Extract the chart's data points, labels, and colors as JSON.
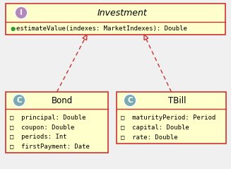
{
  "fig_w": 3.27,
  "fig_h": 2.39,
  "dpi": 100,
  "bg_color": "#f0f0f0",
  "box_fill": "#ffffcc",
  "border_color": "#cc3333",
  "iface_circle_color": "#b388b8",
  "class_circle_color": "#7aabb0",
  "arrow_color": "#cc3333",
  "method_dot_color": "#339933",
  "interface_circle_text": "I",
  "class_circle_text": "C",
  "investment_name": "Investment",
  "investment_method": "estimateValue(indexes: MarketIndexes): Double",
  "bond_name": "Bond",
  "bond_attrs": [
    "□  principal: Double",
    "□  coupon: Double",
    "□  periods: Int",
    "□  firstPayment: Date"
  ],
  "tbill_name": "TBill",
  "tbill_attrs": [
    "□  maturityPeriod: Period",
    "□  capital: Double",
    "□  rate: Double"
  ]
}
